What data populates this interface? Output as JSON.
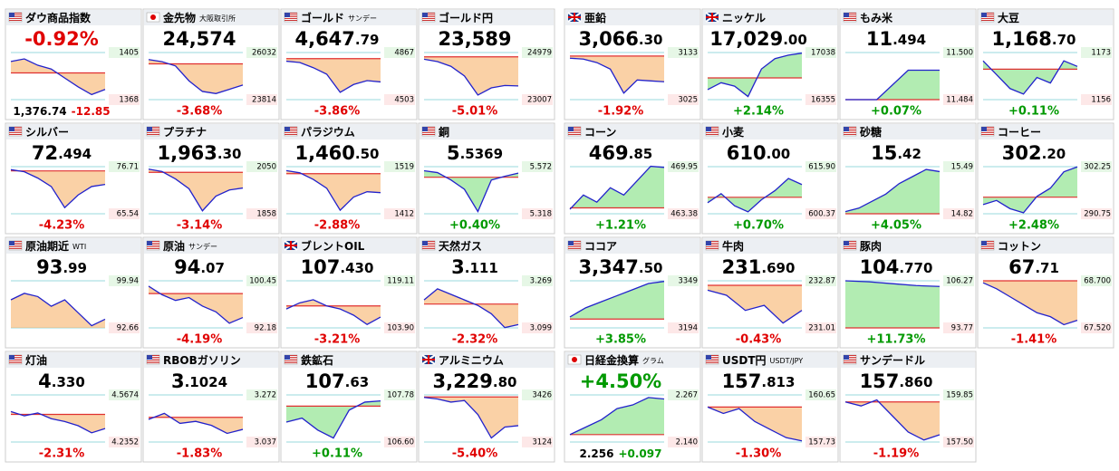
{
  "tiles": [
    {
      "name": "ダウ商品指数",
      "flag": "us",
      "headline": "-0.92%",
      "footer_price": "1,376.74",
      "footer_change": "-12.85",
      "color": "#e00000",
      "ylim": [
        1368,
        1405
      ],
      "yticks": [
        1368,
        1405
      ],
      "ref": 1389,
      "spark": [
        1398,
        1400,
        1395,
        1392,
        1385,
        1378,
        1372,
        1376
      ]
    },
    {
      "name": "金先物",
      "sub": "大阪取引所",
      "flag": "jp",
      "price": "24,574",
      "change": "-3.68%",
      "color": "#e00000",
      "ylim": [
        23814,
        26032
      ],
      "yticks": [
        23814,
        26032
      ],
      "ref": 25500,
      "spark": [
        25700,
        25600,
        25400,
        24700,
        24200,
        24100,
        24300,
        24500
      ]
    },
    {
      "name": "ゴールド",
      "sub": "サンデー",
      "flag": "us",
      "price": "4,647",
      "price_dec": ".79",
      "change": "-3.86%",
      "color": "#e00000",
      "ylim": [
        4503,
        4867
      ],
      "yticks": [
        4503,
        4867
      ],
      "ref": 4820,
      "spark": [
        4800,
        4790,
        4750,
        4700,
        4560,
        4620,
        4650,
        4640
      ]
    },
    {
      "name": "ゴールド円",
      "flag": "us",
      "price": "23,589",
      "change": "-5.01%",
      "color": "#e00000",
      "ylim": [
        23007,
        24979
      ],
      "yticks": [
        23007,
        24979
      ],
      "ref": 24800,
      "spark": [
        24700,
        24600,
        24400,
        24000,
        23200,
        23500,
        23600,
        23580
      ]
    },
    {
      "name": "亜鉛",
      "flag": "uk",
      "price": "3,066",
      "price_dec": ".30",
      "change": "-1.92%",
      "color": "#e00000",
      "ylim": [
        3025,
        3133
      ],
      "yticks": [
        3025,
        3133
      ],
      "ref": 3125,
      "spark": [
        3120,
        3118,
        3110,
        3095,
        3040,
        3070,
        3068,
        3066
      ]
    },
    {
      "name": "ニッケル",
      "flag": "uk",
      "price": "17,029",
      "price_dec": ".00",
      "change": "+2.14%",
      "color": "#009900",
      "ylim": [
        16355,
        17038
      ],
      "yticks": [
        16355,
        17038
      ],
      "ref": 16670,
      "spark": [
        16500,
        16600,
        16550,
        16400,
        16800,
        16950,
        17000,
        17029
      ]
    },
    {
      "name": "もみ米",
      "flag": "us",
      "price": "11",
      "price_dec": ".494",
      "change": "+0.07%",
      "color": "#009900",
      "ylim": [
        11.484,
        11.5
      ],
      "yticks": [
        11.484,
        {
          "value": 11.5,
          "label": "11.500"
        }
      ],
      "ref": 11.484,
      "spark": [
        11.484,
        11.484,
        11.494,
        11.494
      ]
    },
    {
      "name": "大豆",
      "flag": "us",
      "price": "1,168",
      "price_dec": ".70",
      "change": "+0.11%",
      "color": "#009900",
      "ylim": [
        1156,
        1173
      ],
      "yticks": [
        1156,
        1173
      ],
      "ref": 1167,
      "spark": [
        1170,
        1165,
        1160,
        1158,
        1164,
        1162,
        1170,
        1168
      ]
    },
    {
      "name": "シルバー",
      "flag": "us",
      "price": "72",
      "price_dec": ".494",
      "change": "-4.23%",
      "color": "#e00000",
      "ylim": [
        65.54,
        76.71
      ],
      "yticks": [
        65.54,
        76.71
      ],
      "ref": 75.7,
      "spark": [
        76,
        75.5,
        74,
        72,
        67,
        70,
        72,
        72.5
      ]
    },
    {
      "name": "プラチナ",
      "flag": "us",
      "price": "1,963",
      "price_dec": ".30",
      "change": "-3.14%",
      "color": "#e00000",
      "ylim": [
        1858,
        2050
      ],
      "yticks": [
        1858,
        2050
      ],
      "ref": 2027,
      "spark": [
        2040,
        2030,
        2000,
        1960,
        1870,
        1930,
        1955,
        1963
      ]
    },
    {
      "name": "パラジウム",
      "flag": "us",
      "price": "1,460",
      "price_dec": ".50",
      "change": "-2.88%",
      "color": "#e00000",
      "ylim": [
        1412,
        1519
      ],
      "yticks": [
        1412,
        1519
      ],
      "ref": 1503,
      "spark": [
        1510,
        1505,
        1490,
        1470,
        1420,
        1450,
        1462,
        1460
      ]
    },
    {
      "name": "銅",
      "flag": "us",
      "price": "5",
      "price_dec": ".5369",
      "change": "+0.40%",
      "color": "#009900",
      "ylim": [
        5.318,
        5.572
      ],
      "yticks": [
        5.318,
        5.572
      ],
      "ref": 5.515,
      "spark": [
        5.55,
        5.54,
        5.5,
        5.45,
        5.33,
        5.5,
        5.52,
        5.537
      ]
    },
    {
      "name": "コーン",
      "flag": "us",
      "price": "469",
      "price_dec": ".85",
      "change": "+1.21%",
      "color": "#009900",
      "ylim": [
        463.38,
        469.95
      ],
      "yticks": [
        463.38,
        469.95
      ],
      "ref": 464.2,
      "spark": [
        464,
        466,
        465,
        467,
        466,
        468,
        470,
        469.85
      ]
    },
    {
      "name": "小麦",
      "flag": "us",
      "price": "610",
      "price_dec": ".00",
      "change": "+0.70%",
      "color": "#009900",
      "ylim": [
        600.37,
        615.9
      ],
      "yticks": [
        600.37,
        {
          "value": 615.9,
          "label": "615.90"
        }
      ],
      "ref": 605.8,
      "spark": [
        604,
        607,
        603,
        601,
        605,
        608,
        612,
        610
      ]
    },
    {
      "name": "砂糖",
      "flag": "us",
      "price": "15",
      "price_dec": ".42",
      "change": "+4.05%",
      "color": "#009900",
      "ylim": [
        14.82,
        15.49
      ],
      "yticks": [
        14.82,
        15.49
      ],
      "ref": 14.82,
      "spark": [
        14.85,
        14.9,
        15.0,
        15.1,
        15.25,
        15.35,
        15.45,
        15.42
      ]
    },
    {
      "name": "コーヒー",
      "flag": "us",
      "price": "302",
      "price_dec": ".20",
      "change": "+2.48%",
      "color": "#009900",
      "ylim": [
        290.75,
        302.25
      ],
      "yticks": [
        290.75,
        302.25
      ],
      "ref": 294.8,
      "spark": [
        293,
        294,
        292,
        291,
        295,
        297,
        301,
        302.2
      ]
    },
    {
      "name": "原油期近",
      "sub": "WTI",
      "flag": "us",
      "price": "93",
      "price_dec": ".99",
      "color": "#e00000",
      "ylim": [
        92.66,
        99.94
      ],
      "yticks": [
        92.66,
        99.94
      ],
      "spark": [
        97,
        98,
        97.5,
        96,
        97,
        95,
        93,
        94
      ]
    },
    {
      "name": "原油",
      "sub": "サンデー",
      "flag": "us",
      "price": "94",
      "price_dec": ".07",
      "change": "-4.19%",
      "color": "#e00000",
      "ylim": [
        92.18,
        100.45
      ],
      "yticks": [
        92.18,
        100.45
      ],
      "ref": 98.2,
      "spark": [
        99.5,
        98,
        97,
        97.5,
        96,
        95,
        93,
        94
      ]
    },
    {
      "name": "ブレントOIL",
      "flag": "uk",
      "price": "107",
      "price_dec": ".430",
      "change": "-3.21%",
      "color": "#e00000",
      "ylim": [
        103.9,
        119.11
      ],
      "yticks": [
        {
          "value": 103.9,
          "label": "103.90"
        },
        119.11
      ],
      "ref": 111,
      "spark": [
        110,
        112,
        113,
        111,
        110,
        108,
        105,
        107.4
      ]
    },
    {
      "name": "天然ガス",
      "flag": "us",
      "price": "3",
      "price_dec": ".111",
      "change": "-2.32%",
      "color": "#e00000",
      "ylim": [
        3.099,
        3.269
      ],
      "yticks": [
        3.099,
        3.269
      ],
      "ref": 3.185,
      "spark": [
        3.2,
        3.24,
        3.22,
        3.2,
        3.18,
        3.15,
        3.1,
        3.111
      ]
    },
    {
      "name": "ココア",
      "flag": "us",
      "price": "3,347",
      "price_dec": ".50",
      "change": "+3.85%",
      "color": "#009900",
      "ylim": [
        3194,
        3349
      ],
      "yticks": [
        3194,
        3349
      ],
      "ref": 3223,
      "spark": [
        3230,
        3260,
        3280,
        3300,
        3320,
        3340,
        3347
      ]
    },
    {
      "name": "牛肉",
      "flag": "us",
      "price": "231",
      "price_dec": ".690",
      "change": "-0.43%",
      "color": "#e00000",
      "ylim": [
        231.01,
        232.87
      ],
      "yticks": [
        231.01,
        232.87
      ],
      "ref": 232.69,
      "spark": [
        232.5,
        232.3,
        231.7,
        231.9,
        231.2,
        231.7
      ]
    },
    {
      "name": "豚肉",
      "flag": "us",
      "price": "104",
      "price_dec": ".770",
      "change": "+11.73%",
      "color": "#009900",
      "ylim": [
        93.77,
        106.27
      ],
      "yticks": [
        93.77,
        106.27
      ],
      "ref": 93.77,
      "spark": [
        106.27,
        106,
        105.5,
        105,
        104.77
      ]
    },
    {
      "name": "コットン",
      "flag": "us",
      "price": "67",
      "price_dec": ".71",
      "change": "-1.41%",
      "color": "#e00000",
      "ylim": [
        67.52,
        68.7
      ],
      "yticks": [
        {
          "value": 67.52,
          "label": "67.520"
        },
        {
          "value": 68.7,
          "label": "68.700"
        }
      ],
      "ref": 68.7,
      "spark": [
        68.65,
        68.5,
        68.3,
        68.1,
        67.9,
        67.8,
        67.6,
        67.71
      ]
    },
    {
      "name": "灯油",
      "flag": "us",
      "price": "4",
      "price_dec": ".330",
      "change": "-2.31%",
      "color": "#e00000",
      "ylim": [
        4.2352,
        4.5674
      ],
      "yticks": [
        4.2352,
        4.5674
      ],
      "ref": 4.43,
      "spark": [
        4.45,
        4.42,
        4.44,
        4.4,
        4.38,
        4.35,
        4.3,
        4.33
      ]
    },
    {
      "name": "RBOBガソリン",
      "flag": "us",
      "price": "3",
      "price_dec": ".1024",
      "change": "-1.83%",
      "color": "#e00000",
      "ylim": [
        3.037,
        3.272
      ],
      "yticks": [
        3.037,
        3.272
      ],
      "ref": 3.16,
      "spark": [
        3.15,
        3.18,
        3.13,
        3.14,
        3.12,
        3.08,
        3.1
      ]
    },
    {
      "name": "鉄鉱石",
      "flag": "us",
      "price": "107",
      "price_dec": ".63",
      "change": "+0.11%",
      "color": "#009900",
      "ylim": [
        106.6,
        107.78
      ],
      "yticks": [
        {
          "value": 106.6,
          "label": "106.60"
        },
        107.78
      ],
      "ref": 107.5,
      "spark": [
        107.1,
        107.2,
        106.9,
        106.7,
        107.4,
        107.6,
        107.63
      ]
    },
    {
      "name": "アルミニウム",
      "flag": "uk",
      "price": "3,229",
      "price_dec": ".80",
      "change": "-5.40%",
      "color": "#e00000",
      "ylim": [
        3124,
        3426
      ],
      "yticks": [
        3124,
        3426
      ],
      "ref": 3413,
      "spark": [
        3410,
        3400,
        3380,
        3390,
        3300,
        3150,
        3220,
        3229
      ]
    },
    {
      "name": "日経金換算",
      "sub": "グラム",
      "flag": "jp",
      "headline": "+4.50%",
      "footer_price": "2.256",
      "footer_change": "+0.097",
      "color": "#009900",
      "ylim": [
        2.14,
        2.267
      ],
      "yticks": [
        {
          "value": 2.14,
          "label": "2.140"
        },
        2.267
      ],
      "ref": 2.16,
      "spark": [
        2.16,
        2.18,
        2.2,
        2.23,
        2.24,
        2.26,
        2.256
      ]
    },
    {
      "name": "USDT円",
      "sub": "USDT/JPY",
      "flag": "us",
      "price": "157",
      "price_dec": ".813",
      "change": "-1.30%",
      "color": "#e00000",
      "ylim": [
        157.73,
        160.65
      ],
      "yticks": [
        157.73,
        160.65
      ],
      "ref": 159.9,
      "spark": [
        159.9,
        159.5,
        159.8,
        159,
        158.5,
        158,
        157.8
      ]
    },
    {
      "name": "サンデードル",
      "flag": "us",
      "price": "157",
      "price_dec": ".860",
      "change": "-1.19%",
      "color": "#e00000",
      "ylim": [
        157.5,
        159.85
      ],
      "yticks": [
        {
          "value": 157.5,
          "label": "157.50"
        },
        159.85
      ],
      "ref": 159.5,
      "spark": [
        159.5,
        159.3,
        159.6,
        158.8,
        158,
        157.6,
        157.86
      ]
    }
  ]
}
